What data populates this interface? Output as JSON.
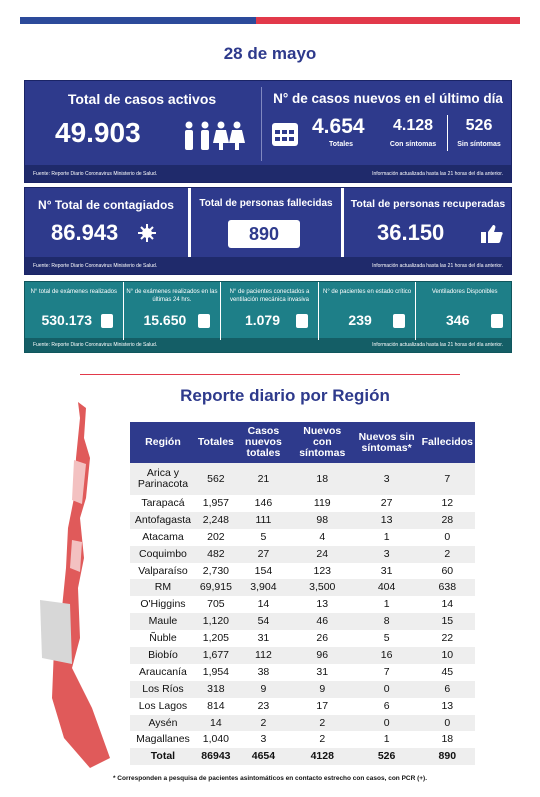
{
  "date": "28 de mayo",
  "panel1": {
    "active": {
      "title": "Total de casos activos",
      "value": "49.903"
    },
    "new": {
      "title": "N° de casos nuevos en el último día",
      "total": {
        "value": "4.654",
        "label": "Totales"
      },
      "symptomatic": {
        "value": "4.128",
        "label": "Con síntomas"
      },
      "asymptomatic": {
        "value": "526",
        "label": "Sin síntomas"
      }
    },
    "source": "Fuente: Reporte Diario Coronavirus Ministerio de Salud.",
    "updated": "Información actualizada hasta las 21 horas del día anterior."
  },
  "panel2": {
    "infected": {
      "title": "N° Total de contagiados",
      "value": "86.943"
    },
    "deaths": {
      "title": "Total de personas fallecidas",
      "value": "890"
    },
    "recovered": {
      "title": "Total de personas recuperadas",
      "value": "36.150"
    },
    "source": "Fuente: Reporte Diario Coronavirus Ministerio de Salud.",
    "updated": "Información actualizada hasta las 21 horas del día anterior."
  },
  "panel3": {
    "items": [
      {
        "label": "N° total de exámenes realizados",
        "value": "530.173"
      },
      {
        "label": "N° de exámenes realizados en las últimas 24 hrs.",
        "value": "15.650"
      },
      {
        "label": "N° de pacientes conectados a ventilación mecánica invasiva",
        "value": "1.079"
      },
      {
        "label": "N° de pacientes en estado crítico",
        "value": "239"
      },
      {
        "label": "Ventiladores Disponibles",
        "value": "346"
      }
    ],
    "source": "Fuente: Reporte Diario Coronavirus Ministerio de Salud.",
    "updated": "Información actualizada hasta las 21 horas del día anterior."
  },
  "report": {
    "title": "Reporte diario por Región",
    "headers": [
      "Región",
      "Totales",
      "Casos nuevos totales",
      "Nuevos con síntomas",
      "Nuevos sin síntomas*",
      "Fallecidos"
    ],
    "rows": [
      [
        "Arica y Parinacota",
        "562",
        "21",
        "18",
        "3",
        "7"
      ],
      [
        "Tarapacá",
        "1,957",
        "146",
        "119",
        "27",
        "12"
      ],
      [
        "Antofagasta",
        "2,248",
        "111",
        "98",
        "13",
        "28"
      ],
      [
        "Atacama",
        "202",
        "5",
        "4",
        "1",
        "0"
      ],
      [
        "Coquimbo",
        "482",
        "27",
        "24",
        "3",
        "2"
      ],
      [
        "Valparaíso",
        "2,730",
        "154",
        "123",
        "31",
        "60"
      ],
      [
        "RM",
        "69,915",
        "3,904",
        "3,500",
        "404",
        "638"
      ],
      [
        "O'Higgins",
        "705",
        "14",
        "13",
        "1",
        "14"
      ],
      [
        "Maule",
        "1,120",
        "54",
        "46",
        "8",
        "15"
      ],
      [
        "Ñuble",
        "1,205",
        "31",
        "26",
        "5",
        "22"
      ],
      [
        "Biobío",
        "1,677",
        "112",
        "96",
        "16",
        "10"
      ],
      [
        "Araucanía",
        "1,954",
        "38",
        "31",
        "7",
        "45"
      ],
      [
        "Los Ríos",
        "318",
        "9",
        "9",
        "0",
        "6"
      ],
      [
        "Los Lagos",
        "814",
        "23",
        "17",
        "6",
        "13"
      ],
      [
        "Aysén",
        "14",
        "2",
        "2",
        "0",
        "0"
      ],
      [
        "Magallanes",
        "1,040",
        "3",
        "2",
        "1",
        "18"
      ],
      [
        "Total",
        "86943",
        "4654",
        "4128",
        "526",
        "890"
      ]
    ],
    "footnote": "* Corresponden a pesquisa de pacientes asintomáticos en contacto estrecho con casos, con PCR (+)."
  }
}
